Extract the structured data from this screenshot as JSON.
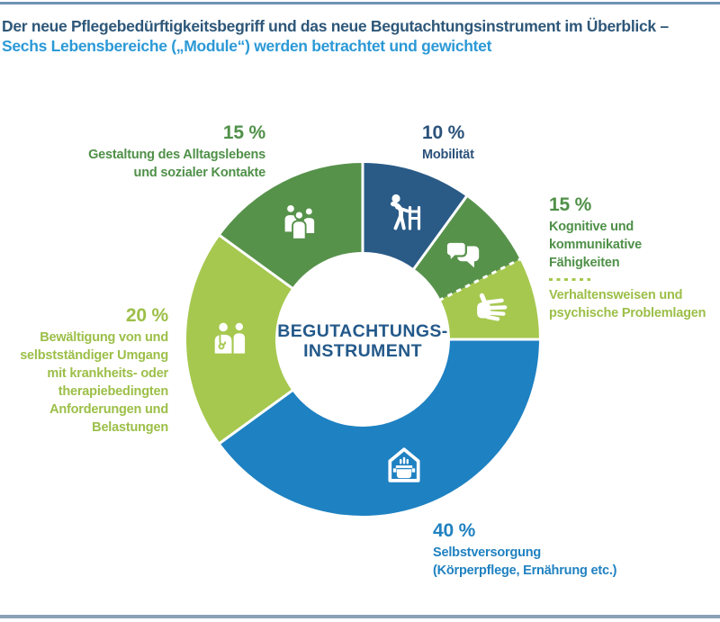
{
  "header": {
    "title_line1": "Der neue Pflegebedürftigkeitsbegriff und das neue Begutachtungsinstrument im Überblick –",
    "title_line2": "Sechs Lebensbereiche („Module“) werden betrachtet und gewichtet"
  },
  "chart_data": {
    "type": "pie",
    "variant": "donut",
    "title": "Der neue Pflegebedürftigkeitsbegriff und das neue Begutachtungsinstrument im Überblick – Sechs Lebensbereiche („Module“) werden betrachtet und gewichtet",
    "direction": "clockwise",
    "start_angle_deg": 0,
    "center_label": {
      "line1": "BEGUTACHTUNGS-",
      "line2": "INSTRUMENT"
    },
    "slices": [
      {
        "id": "mobilitaet",
        "name": "Mobilität",
        "value": 10,
        "color": "#2a5b87",
        "icon": "walker-icon"
      },
      {
        "id": "kognitive",
        "name": "Kognitive und kommunikative Fähigkeiten",
        "value": 7.5,
        "color": "#57924b",
        "icon": "speech-bubbles-icon"
      },
      {
        "id": "verhaltensweisen",
        "name": "Verhaltensweisen und psychische Problemlagen",
        "value": 7.5,
        "color": "#a6c84f",
        "icon": "hand-icon",
        "divider_before": "dashed"
      },
      {
        "id": "selbstversorgung",
        "name": "Selbstversorgung (Körperpflege, Ernährung etc.)",
        "value": 40,
        "color": "#1e81c2",
        "icon": "house-cooking-pot-icon"
      },
      {
        "id": "bewaeltigung",
        "name": "Bewältigung von und selbstständiger Umgang mit krankheits- oder therapiebedingten Anforderungen und Belastungen",
        "value": 20,
        "color": "#a6c84f",
        "icon": "doctor-patient-icon"
      },
      {
        "id": "gestaltung",
        "name": "Gestaltung des Alltagslebens und sozialer Kontakte",
        "value": 15,
        "color": "#57924b",
        "icon": "people-group-icon"
      }
    ],
    "labels": {
      "gestaltung": {
        "pct": "15 %",
        "line1": "Gestaltung des Alltagslebens",
        "line2": "und sozialer Kontakte"
      },
      "mobilitaet": {
        "pct": "10 %",
        "line1": "Mobilität"
      },
      "kognitive": {
        "pct": "15 %",
        "line1": "Kognitive und kommunikative",
        "line2": "Fähigkeiten",
        "line3": "Verhaltensweisen und",
        "line4": "psychische Problemlagen"
      },
      "bewaeltigung": {
        "pct": "20 %",
        "line1": "Bewältigung von und",
        "line2": "selbstständiger Umgang",
        "line3": "mit krankheits- oder",
        "line4": "therapiebedingten",
        "line5": "Anforderungen und",
        "line6": "Belastungen"
      },
      "selbstversorgung": {
        "pct": "40 %",
        "line1": "Selbstversorgung",
        "line2": "(Körperpflege, Ernährung etc.)"
      }
    },
    "colors": {
      "navy": "#2a5b87",
      "blue": "#1e81c2",
      "dark_green": "#57924b",
      "light_green": "#a6c84f",
      "title_navy": "#2e5779",
      "title_light_blue": "#2b99d6",
      "center_text": "#23598a",
      "top_rule": "#6e92b4",
      "bottom_rule": "#8aa1b5"
    }
  }
}
